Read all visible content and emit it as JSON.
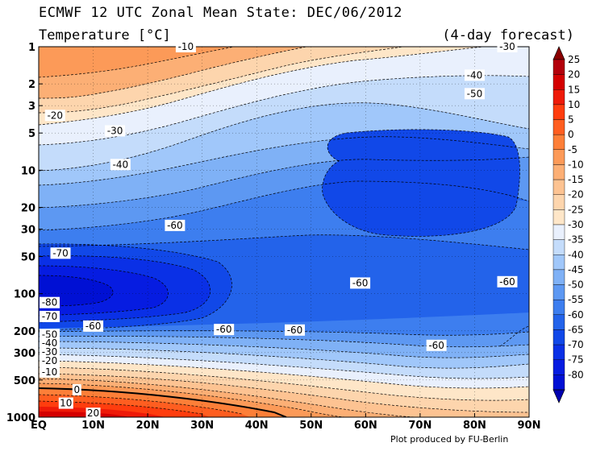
{
  "header": {
    "title": "ECMWF 12 UTC Zonal Mean State: DEC/06/2012",
    "subtitle": "Temperature [°C]",
    "forecast": "(4-day forecast)"
  },
  "footer": {
    "credit": "Plot produced by FU-Berlin"
  },
  "colors": {
    "levels": [
      {
        "v": 25,
        "c": "#b3000b"
      },
      {
        "v": 20,
        "c": "#d40000"
      },
      {
        "v": 15,
        "c": "#ee1a08"
      },
      {
        "v": 10,
        "c": "#ff3d0e"
      },
      {
        "v": 5,
        "c": "#ff5e20"
      },
      {
        "v": 0,
        "c": "#fd7f38"
      },
      {
        "v": -5,
        "c": "#fc9a58"
      },
      {
        "v": -10,
        "c": "#fcaf75"
      },
      {
        "v": -15,
        "c": "#fdc392"
      },
      {
        "v": -20,
        "c": "#fdd5ad"
      },
      {
        "v": -25,
        "c": "#fee6c8"
      },
      {
        "v": -30,
        "c": "#e9f0fd"
      },
      {
        "v": -35,
        "c": "#c4dcfb"
      },
      {
        "v": -40,
        "c": "#a0c7fa"
      },
      {
        "v": -45,
        "c": "#7fb1f6"
      },
      {
        "v": -50,
        "c": "#5d98f2"
      },
      {
        "v": -55,
        "c": "#3d7eef"
      },
      {
        "v": -60,
        "c": "#2363ea"
      },
      {
        "v": -65,
        "c": "#1148e8"
      },
      {
        "v": -70,
        "c": "#0a30e6"
      },
      {
        "v": -75,
        "c": "#061ce1"
      },
      {
        "v": -80,
        "c": "#0010d4"
      }
    ]
  },
  "chart_data": {
    "type": "heatmap",
    "xlabel": "",
    "ylabel": "",
    "x_ticks": [
      "EQ",
      "10N",
      "20N",
      "30N",
      "40N",
      "50N",
      "60N",
      "70N",
      "80N",
      "90N"
    ],
    "y_ticks": [
      "1",
      "2",
      "3",
      "5",
      "10",
      "20",
      "30",
      "50",
      "100",
      "200",
      "300",
      "500",
      "1000"
    ],
    "y_scale": "log",
    "y_values_hPa": [
      1,
      2,
      3,
      5,
      10,
      20,
      30,
      50,
      100,
      200,
      300,
      500,
      1000
    ],
    "y_range_hPa": [
      1000,
      1
    ],
    "x_range_lat": [
      0,
      90
    ],
    "colorbar_ticks": [
      25,
      20,
      15,
      10,
      5,
      0,
      -5,
      -10,
      -15,
      -20,
      -25,
      -30,
      -35,
      -40,
      -45,
      -50,
      -55,
      -60,
      -65,
      -70,
      -75,
      -80
    ],
    "contour_labels": [
      {
        "text": "-10",
        "lat": 27,
        "p": 1
      },
      {
        "text": "-30",
        "lat": 86,
        "p": 1
      },
      {
        "text": "-40",
        "lat": 80,
        "p": 1.7
      },
      {
        "text": "-50",
        "lat": 80,
        "p": 2.4
      },
      {
        "text": "-20",
        "lat": 3,
        "p": 3.6
      },
      {
        "text": "-30",
        "lat": 14,
        "p": 4.8
      },
      {
        "text": "-40",
        "lat": 15,
        "p": 9
      },
      {
        "text": "-60",
        "lat": 25,
        "p": 28
      },
      {
        "text": "-70",
        "lat": 4,
        "p": 47
      },
      {
        "text": "-60",
        "lat": 59,
        "p": 82
      },
      {
        "text": "-60",
        "lat": 86,
        "p": 80
      },
      {
        "text": "-80",
        "lat": 2,
        "p": 118
      },
      {
        "text": "-70",
        "lat": 2,
        "p": 153
      },
      {
        "text": "-60",
        "lat": 10,
        "p": 183
      },
      {
        "text": "-60",
        "lat": 34,
        "p": 195
      },
      {
        "text": "-60",
        "lat": 47,
        "p": 197
      },
      {
        "text": "-60",
        "lat": 73,
        "p": 262
      },
      {
        "text": "-50",
        "lat": 2,
        "p": 214
      },
      {
        "text": "-40",
        "lat": 2,
        "p": 252
      },
      {
        "text": "-30",
        "lat": 2,
        "p": 296
      },
      {
        "text": "-20",
        "lat": 2,
        "p": 350
      },
      {
        "text": "-10",
        "lat": 2,
        "p": 430
      },
      {
        "text": "0",
        "lat": 7,
        "p": 600
      },
      {
        "text": "10",
        "lat": 5,
        "p": 770
      },
      {
        "text": "20",
        "lat": 10,
        "p": 930
      }
    ],
    "grid": true,
    "legend": "colorbar-right"
  }
}
